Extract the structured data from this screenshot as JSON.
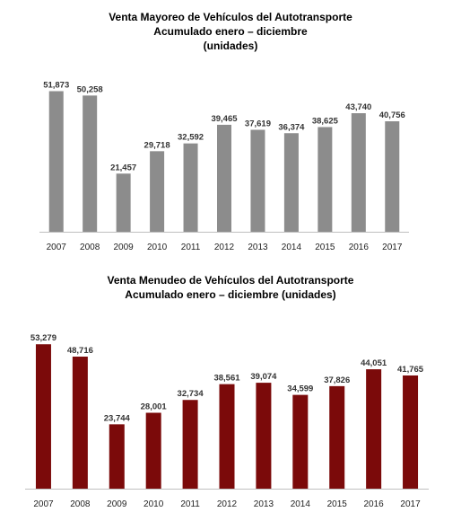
{
  "chart_data": [
    {
      "type": "bar",
      "title_lines": [
        "Venta Mayoreo de Vehículos del Autotransporte",
        "Acumulado enero – diciembre",
        "(unidades)"
      ],
      "categories": [
        "2007",
        "2008",
        "2009",
        "2010",
        "2011",
        "2012",
        "2013",
        "2014",
        "2015",
        "2016",
        "2017"
      ],
      "values": [
        51873,
        50258,
        21457,
        29718,
        32592,
        39465,
        37619,
        36374,
        38625,
        43740,
        40756
      ],
      "value_labels": [
        "51,873",
        "50,258",
        "21,457",
        "29,718",
        "32,592",
        "39,465",
        "37,619",
        "36,374",
        "38,625",
        "43,740",
        "40,756"
      ],
      "color": "#8c8c8c",
      "xlabel": "",
      "ylabel": "",
      "ylim": [
        0,
        58000
      ],
      "grid": false
    },
    {
      "type": "bar",
      "title_lines": [
        "Venta Menudeo de Vehículos del Autotransporte",
        "Acumulado enero – diciembre (unidades)"
      ],
      "categories": [
        "2007",
        "2008",
        "2009",
        "2010",
        "2011",
        "2012",
        "2013",
        "2014",
        "2015",
        "2016",
        "2017"
      ],
      "values": [
        53279,
        48716,
        23744,
        28001,
        32734,
        38561,
        39074,
        34599,
        37826,
        44051,
        41765
      ],
      "value_labels": [
        "53,279",
        "48,716",
        "23,744",
        "28,001",
        "32,734",
        "38,561",
        "39,074",
        "34,599",
        "37,826",
        "44,051",
        "41,765"
      ],
      "color": "#7b0a0a",
      "xlabel": "",
      "ylabel": "",
      "ylim": [
        0,
        58000
      ],
      "grid": false
    }
  ]
}
